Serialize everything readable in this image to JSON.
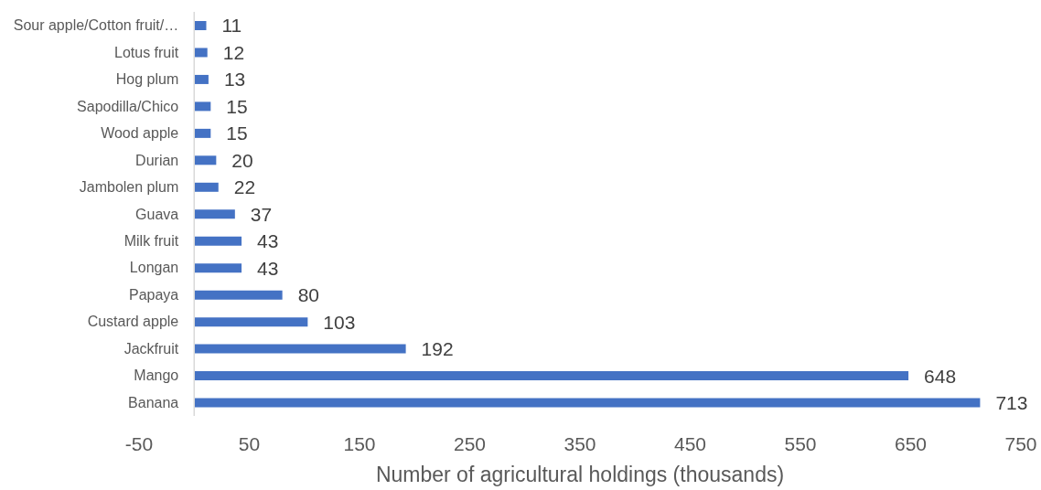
{
  "chart_data": {
    "type": "bar",
    "orientation": "horizontal",
    "xlabel": "Number of agricultural holdings (thousands)",
    "categories": [
      "Sour apple/Cotton fruit/…",
      "Lotus fruit",
      "Hog plum",
      "Sapodilla/Chico",
      "Wood apple",
      "Durian",
      "Jambolen plum",
      "Guava",
      "Milk fruit",
      "Longan",
      "Papaya",
      "Custard apple",
      "Jackfruit",
      "Mango",
      "Banana"
    ],
    "values": [
      11,
      12,
      13,
      15,
      15,
      20,
      22,
      37,
      43,
      43,
      80,
      103,
      192,
      648,
      713
    ],
    "color": "#4472c4",
    "xlim": [
      -50,
      750
    ],
    "xticks": [
      -50,
      50,
      150,
      250,
      350,
      450,
      550,
      650,
      750
    ],
    "data_labels": true
  }
}
